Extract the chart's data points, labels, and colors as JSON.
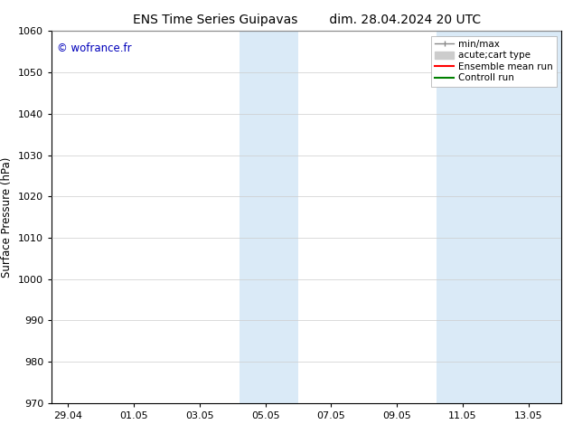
{
  "title_left": "ENS Time Series Guipavas",
  "title_right": "dim. 28.04.2024 20 UTC",
  "ylabel": "Surface Pressure (hPa)",
  "ylim": [
    970,
    1060
  ],
  "yticks": [
    970,
    980,
    990,
    1000,
    1010,
    1020,
    1030,
    1040,
    1050,
    1060
  ],
  "xtick_labels": [
    "29.04",
    "01.05",
    "03.05",
    "05.05",
    "07.05",
    "09.05",
    "11.05",
    "13.05"
  ],
  "xtick_positions": [
    0,
    2,
    4,
    6,
    8,
    10,
    12,
    14
  ],
  "xmin": -0.5,
  "xmax": 15.0,
  "watermark": "© wofrance.fr",
  "watermark_color": "#0000bb",
  "bg_color": "#ffffff",
  "plot_bg_color": "#ffffff",
  "shaded_regions": [
    {
      "x_start": 5.2,
      "x_end": 7.0
    },
    {
      "x_start": 11.2,
      "x_end": 15.0
    }
  ],
  "shaded_color": "#daeaf7",
  "legend_entries": [
    {
      "label": "min/max",
      "color": "#aaaaaa"
    },
    {
      "label": "acute;cart type",
      "color": "#cccccc"
    },
    {
      "label": "Ensemble mean run",
      "color": "#ff0000"
    },
    {
      "label": "Controll run",
      "color": "#008000"
    }
  ],
  "grid_color": "#cccccc",
  "spine_color": "#000000",
  "title_fontsize": 10,
  "label_fontsize": 8.5,
  "tick_fontsize": 8,
  "legend_fontsize": 7.5
}
